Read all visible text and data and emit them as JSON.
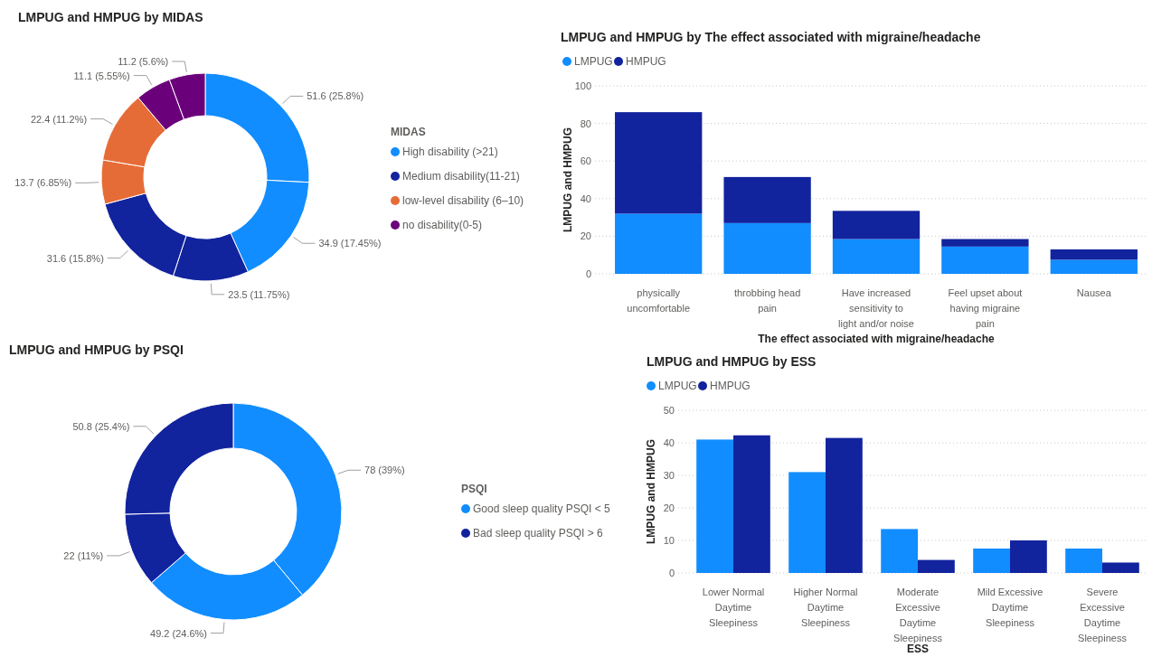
{
  "chart_data": [
    {
      "type": "donut",
      "title": "LMPUG and HMPUG by MIDAS",
      "legend_title": "MIDAS",
      "legend": "right",
      "categories": [
        "High disability (>21)",
        null,
        "Medium disability(11-21)",
        null,
        "low-level disability (6–10)",
        null,
        "no disability(0-5)",
        null
      ],
      "values": [
        51.6,
        34.9,
        23.5,
        31.6,
        13.7,
        22.4,
        11.1,
        11.2
      ],
      "colors": [
        "#118dff",
        "#118dff",
        "#12239e",
        "#12239e",
        "#e66c37",
        "#e66c37",
        "#6b007b",
        "#6b007b"
      ],
      "value_labels": [
        "51.6 (25.8%)",
        "34.9 (17.45%)",
        "23.5 (11.75%)",
        "31.6 (15.8%)",
        "13.7 (6.85%)",
        "22.4 (11.2%)",
        "11.1 (5.55%)",
        "11.2 (5.6%)"
      ]
    },
    {
      "type": "bar",
      "stacked": true,
      "title": "LMPUG and HMPUG by The effect associated with migraine/headache",
      "xlabel": "The effect associated with migraine/headache",
      "ylabel": "LMPUG and HMPUG",
      "legend": "top left",
      "grid": "y",
      "categories": [
        "physically uncomfortable",
        "throbbing head pain",
        "Have increased sensitivity to light and/or noise",
        "Feel upset about having migraine pain",
        "Nausea"
      ],
      "ylim": [
        0,
        100
      ],
      "yticks": [
        0,
        20,
        40,
        60,
        80,
        100
      ],
      "series": [
        {
          "name": "LMPUG",
          "color": "#118dff",
          "values": [
            32,
            27,
            18.5,
            14.5,
            7.5
          ]
        },
        {
          "name": "HMPUG",
          "color": "#12239e",
          "values": [
            54,
            24.5,
            15,
            4,
            5.5
          ]
        }
      ]
    },
    {
      "type": "donut",
      "title": "LMPUG and HMPUG by PSQI",
      "legend_title": "PSQI",
      "legend": "right",
      "categories": [
        "Good sleep quality PSQI < 5",
        null,
        "Bad sleep quality PSQI > 6",
        null
      ],
      "values": [
        78,
        49.2,
        22,
        50.8
      ],
      "colors": [
        "#118dff",
        "#118dff",
        "#12239e",
        "#12239e"
      ],
      "value_labels": [
        "78 (39%)",
        "49.2 (24.6%)",
        "22 (11%)",
        "50.8 (25.4%)"
      ]
    },
    {
      "type": "bar",
      "title": "LMPUG and HMPUG by ESS",
      "xlabel": "ESS",
      "ylabel": "LMPUG and HMPUG",
      "legend": "top left",
      "grid": "y",
      "categories": [
        "Lower Normal Daytime Sleepiness",
        "Higher Normal Daytime Sleepiness",
        "Moderate Excessive Daytime Sleepiness",
        "Mild Excessive Daytime Sleepiness",
        "Severe Excessive Daytime Sleepiness"
      ],
      "ylim": [
        0,
        50
      ],
      "yticks": [
        0,
        10,
        20,
        30,
        40,
        50
      ],
      "series": [
        {
          "name": "LMPUG",
          "color": "#118dff",
          "values": [
            41,
            31,
            13.5,
            7.5,
            7.5
          ]
        },
        {
          "name": "HMPUG",
          "color": "#12239e",
          "values": [
            42.3,
            41.5,
            4,
            10,
            3.2
          ]
        }
      ]
    }
  ]
}
